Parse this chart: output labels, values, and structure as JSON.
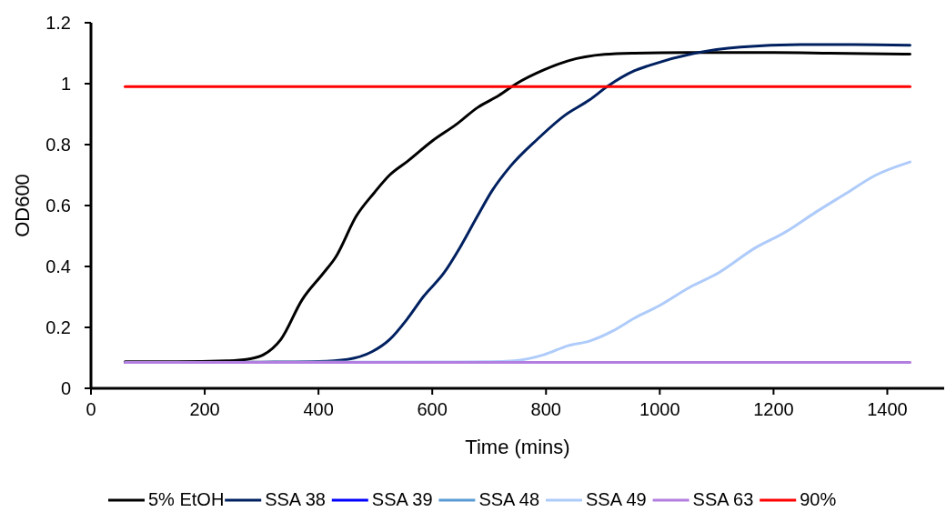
{
  "chart_data": {
    "type": "line",
    "xlabel": "Time (mins)",
    "ylabel": "OD600",
    "xlim": [
      0,
      1500
    ],
    "xticks": [
      0,
      200,
      400,
      600,
      800,
      1000,
      1200,
      1400
    ],
    "ylim": [
      0,
      1.2
    ],
    "yticks": [
      0,
      0.2,
      0.4,
      0.6,
      0.8,
      1,
      1.2
    ],
    "grid": false,
    "legend": "bottom",
    "marker": "none",
    "line_style": "solid",
    "series": [
      {
        "name": "5% EtOH",
        "color": "#000000",
        "x": [
          60,
          150,
          239,
          280,
          303,
          334,
          371,
          409,
          430,
          467,
          498,
          525,
          557,
          600,
          642,
          680,
          717,
          748,
          796,
          839,
          903,
          955,
          1050,
          1200,
          1300,
          1440
        ],
        "values": [
          0.087,
          0.087,
          0.09,
          0.097,
          0.11,
          0.161,
          0.29,
          0.379,
          0.43,
          0.567,
          0.642,
          0.7,
          0.746,
          0.812,
          0.866,
          0.922,
          0.961,
          1.0,
          1.045,
          1.075,
          1.096,
          1.1,
          1.102,
          1.102,
          1.1,
          1.097
        ]
      },
      {
        "name": "SSA 38",
        "color": "#002060",
        "x": [
          60,
          200,
          300,
          400,
          451,
          494,
          525,
          557,
          584,
          621,
          648,
          680,
          705,
          737,
          785,
          833,
          876,
          908,
          955,
          982,
          1062,
          1142,
          1247,
          1340,
          1440
        ],
        "values": [
          0.085,
          0.085,
          0.086,
          0.088,
          0.095,
          0.12,
          0.16,
          0.23,
          0.3,
          0.38,
          0.46,
          0.567,
          0.648,
          0.728,
          0.818,
          0.896,
          0.946,
          0.991,
          1.042,
          1.06,
          1.1,
          1.12,
          1.128,
          1.128,
          1.126
        ]
      },
      {
        "name": "SSA 39",
        "color": "#0000ff"
      },
      {
        "name": "SSA 48",
        "color": "#5b9bd5"
      },
      {
        "name": "SSA 49",
        "color": "#aecbfa",
        "x": [
          300,
          600,
          700,
          744,
          796,
          839,
          876,
          919,
          955,
          998,
          1051,
          1104,
          1167,
          1221,
          1274,
          1326,
          1380,
          1440
        ],
        "values": [
          0.086,
          null,
          0.087,
          0.09,
          0.11,
          0.14,
          0.155,
          0.19,
          0.23,
          0.27,
          0.33,
          0.38,
          0.46,
          0.513,
          0.578,
          0.638,
          0.7,
          0.743
        ]
      },
      {
        "name": "SSA 63",
        "color": "#b27fe0",
        "x": [
          60,
          1440
        ],
        "values": [
          0.085,
          0.085
        ]
      },
      {
        "name": "90%",
        "color": "#ff0000",
        "x": [
          60,
          1440
        ],
        "values": [
          0.99,
          0.99
        ]
      }
    ]
  }
}
